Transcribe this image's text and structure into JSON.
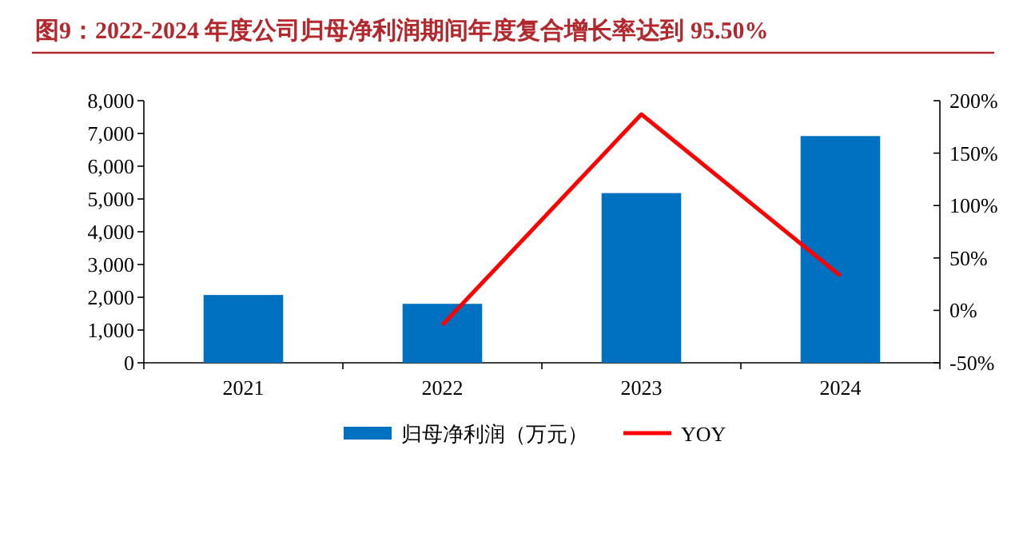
{
  "chart_data": {
    "type": "bar",
    "title": "图9：2022-2024 年度公司归母净利润期间年度复合增长率达到 95.50%",
    "categories": [
      "2021",
      "2022",
      "2023",
      "2024"
    ],
    "series": [
      {
        "name": "归母净利润（万元）",
        "color": "#0070c0",
        "values": [
          2070,
          1800,
          5180,
          6920
        ]
      },
      {
        "name": "YOY",
        "type": "line",
        "axis": "y2",
        "color": "#ff0000",
        "values": [
          null,
          -14,
          187,
          33
        ]
      }
    ],
    "ylim": [
      0,
      8000
    ],
    "yticks": [
      0,
      {
        "value": 1000,
        "label": "1,000"
      },
      {
        "value": 2000,
        "label": "2,000"
      },
      {
        "value": 3000,
        "label": "3,000"
      },
      {
        "value": 4000,
        "label": "4,000"
      },
      {
        "value": 5000,
        "label": "5,000"
      },
      {
        "value": 6000,
        "label": "6,000"
      },
      {
        "value": 7000,
        "label": "7,000"
      },
      {
        "value": 8000,
        "label": "8,000"
      }
    ],
    "y2lim": [
      -50,
      200
    ],
    "y2ticks": [
      {
        "value": -50,
        "label": "-50%"
      },
      {
        "value": 0,
        "label": "0%"
      },
      {
        "value": 50,
        "label": "50%"
      },
      {
        "value": 100,
        "label": "100%"
      },
      {
        "value": 150,
        "label": "150%"
      },
      {
        "value": 200,
        "label": "200%"
      }
    ],
    "legend": "bottom"
  }
}
